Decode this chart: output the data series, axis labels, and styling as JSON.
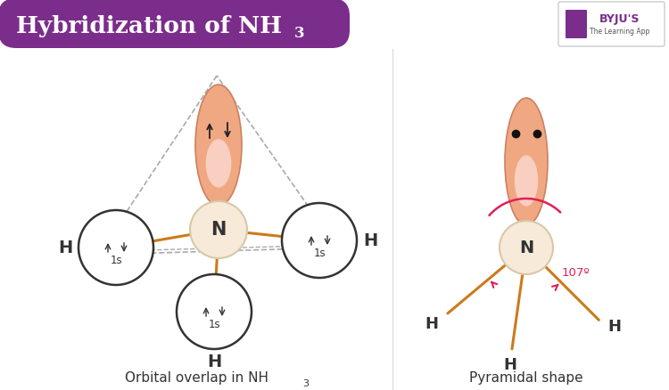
{
  "bg_color": "#ffffff",
  "header_color": "#7b2d8b",
  "orbital_color_dark": "#e8896a",
  "orbital_color_mid": "#f0a882",
  "orbital_color_light": "#f8cfc0",
  "N_color": "#f7ead8",
  "bond_color": "#cc7a1a",
  "dashed_color": "#aaaaaa",
  "left_label": "Orbital overlap in NH",
  "right_label": "Pyramidal shape",
  "angle_label": "107º"
}
